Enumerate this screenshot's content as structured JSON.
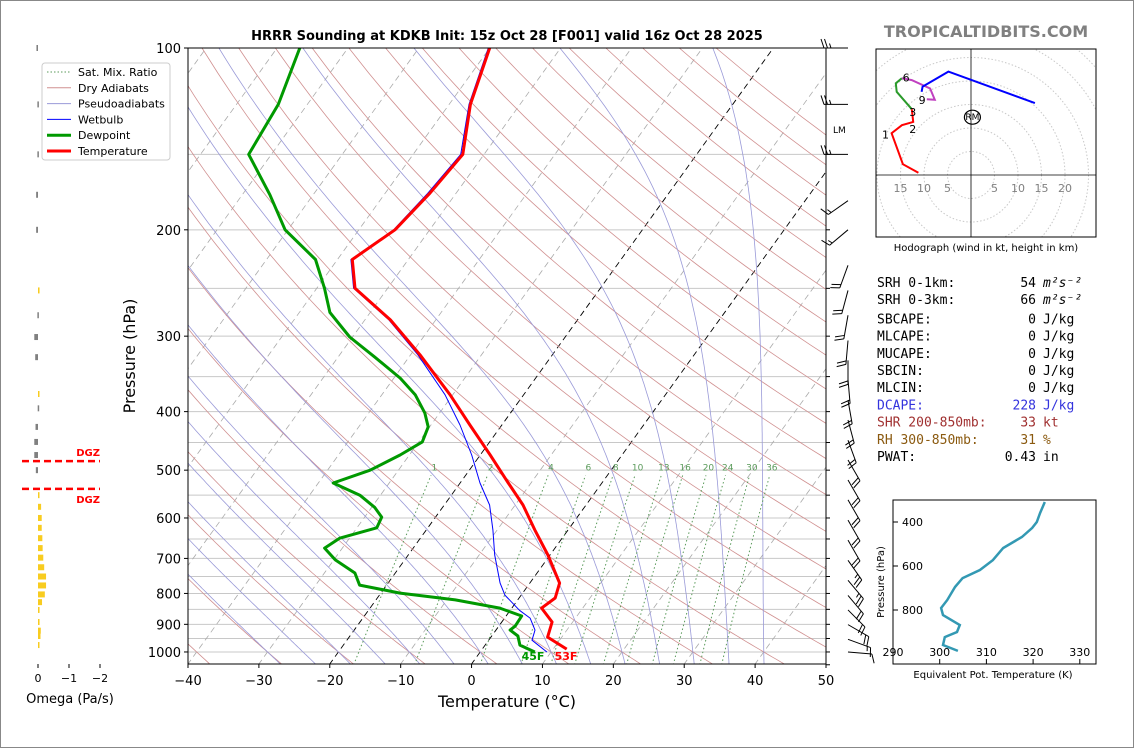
{
  "site": "TROPICALTIDBITS.COM",
  "chart_data": [
    {
      "type": "line",
      "name": "skewt",
      "title": "HRRR Sounding at KDKB Init: 15z Oct 28 [F001] valid 16z Oct 28 2025",
      "xlabel": "Temperature (°C)",
      "ylabel": "Pressure (hPa)",
      "xlim": [
        -40,
        50
      ],
      "ylim": [
        1050,
        100
      ],
      "xticks": [
        -40,
        -30,
        -20,
        -10,
        0,
        10,
        20,
        30,
        40,
        50
      ],
      "xtick_labels": [
        "−40",
        "−30",
        "−20",
        "−10",
        "0",
        "10",
        "20",
        "30",
        "40",
        "50"
      ],
      "yticks": [
        100,
        200,
        300,
        400,
        500,
        600,
        700,
        800,
        900,
        1000
      ],
      "ytick_labels": [
        "100",
        "200",
        "300",
        "400",
        "500",
        "600",
        "700",
        "800",
        "900",
        "1000"
      ],
      "legend": {
        "placement": "upper-left",
        "entries": [
          "Sat. Mix. Ratio",
          "Dry Adiabats",
          "Pseudoadiabats",
          "Wetbulb",
          "Dewpoint",
          "Temperature"
        ]
      },
      "colors": {
        "temperature": "#ff0000",
        "dewpoint": "#009900",
        "wetbulb": "#0000ff",
        "dry": "#d09090",
        "moist": "#9a9ad8",
        "mixing": "#5a9a5a"
      },
      "temperature": {
        "p": [
          100,
          124,
          150,
          174,
          200,
          224,
          250,
          282,
          322,
          375,
          421,
          472,
          525,
          571,
          628,
          691,
          769,
          814,
          846,
          892,
          945,
          989
        ],
        "t": [
          -60.0,
          -57.0,
          -53.0,
          -53.7,
          -54.9,
          -57.9,
          -54.6,
          -46.4,
          -38.7,
          -30.4,
          -24.5,
          -18.6,
          -13.2,
          -8.9,
          -4.7,
          -0.3,
          4.2,
          5.1,
          4.2,
          7.1,
          8.0,
          11.9
        ]
      },
      "dewpoint": {
        "p": [
          100,
          124,
          150,
          175,
          200,
          224,
          250,
          274,
          301,
          325,
          352,
          375,
          402,
          424,
          449,
          472,
          500,
          525,
          550,
          576,
          598,
          623,
          648,
          673,
          704,
          740,
          775,
          799,
          820,
          846,
          872,
          906,
          920,
          941,
          974,
          1000
        ],
        "t": [
          -86.8,
          -84.1,
          -83.2,
          -76.1,
          -70.4,
          -63.1,
          -58.9,
          -55.7,
          -50.4,
          -44.8,
          -39.1,
          -35.3,
          -32.1,
          -30.2,
          -29.5,
          -31.3,
          -34.0,
          -37.9,
          -32.9,
          -29.6,
          -27.6,
          -27.2,
          -31.4,
          -32.5,
          -29.8,
          -25.7,
          -23.8,
          -17.3,
          -8.8,
          -1.7,
          2.2,
          2.3,
          2.0,
          3.7,
          4.9,
          7.7
        ]
      },
      "wetbulb": {
        "p": [
          100,
          124,
          150,
          174,
          200,
          224,
          250,
          282,
          322,
          375,
          421,
          472,
          525,
          571,
          628,
          691,
          769,
          805,
          853,
          879,
          920,
          956,
          1000
        ],
        "t": [
          -60.2,
          -57.2,
          -53.3,
          -54.0,
          -55.1,
          -58.1,
          -54.8,
          -46.6,
          -39.0,
          -31.1,
          -25.9,
          -21.2,
          -17.2,
          -13.6,
          -10.6,
          -7.8,
          -4.2,
          -2.3,
          1.3,
          3.6,
          5.5,
          6.1,
          9.4
        ]
      },
      "surface_labels": {
        "dewpoint": "45F",
        "temperature": "53F"
      },
      "mixing_ratio_lines": [
        1,
        2,
        4,
        6,
        8,
        10,
        13,
        16,
        20,
        24,
        30,
        36
      ],
      "mixing_ratio_labels": [
        "1",
        "2",
        "4",
        "6",
        "8",
        "10",
        "13",
        "16",
        "20",
        "24",
        "30",
        "36"
      ],
      "dgz": {
        "label": "DGZ",
        "p_top": 483,
        "p_bottom": 537
      },
      "lm_label": "LM",
      "wind_barbs": [
        {
          "p": 100,
          "dir": 270,
          "kt": 25
        },
        {
          "p": 124,
          "dir": 270,
          "kt": 25
        },
        {
          "p": 150,
          "dir": 270,
          "kt": 25
        },
        {
          "p": 179,
          "dir": 235,
          "kt": 15
        },
        {
          "p": 200,
          "dir": 230,
          "kt": 15
        },
        {
          "p": 229,
          "dir": 200,
          "kt": 20
        },
        {
          "p": 252,
          "dir": 195,
          "kt": 20
        },
        {
          "p": 277,
          "dir": 190,
          "kt": 20
        },
        {
          "p": 305,
          "dir": 185,
          "kt": 20
        },
        {
          "p": 329,
          "dir": 180,
          "kt": 20
        },
        {
          "p": 354,
          "dir": 175,
          "kt": 20
        },
        {
          "p": 383,
          "dir": 170,
          "kt": 20
        },
        {
          "p": 413,
          "dir": 165,
          "kt": 20
        },
        {
          "p": 446,
          "dir": 160,
          "kt": 20
        },
        {
          "p": 481,
          "dir": 150,
          "kt": 20
        },
        {
          "p": 519,
          "dir": 150,
          "kt": 20
        },
        {
          "p": 560,
          "dir": 150,
          "kt": 20
        },
        {
          "p": 605,
          "dir": 150,
          "kt": 20
        },
        {
          "p": 653,
          "dir": 150,
          "kt": 20
        },
        {
          "p": 705,
          "dir": 145,
          "kt": 25
        },
        {
          "p": 761,
          "dir": 140,
          "kt": 25
        },
        {
          "p": 806,
          "dir": 140,
          "kt": 20
        },
        {
          "p": 852,
          "dir": 135,
          "kt": 20
        },
        {
          "p": 901,
          "dir": 120,
          "kt": 20
        },
        {
          "p": 953,
          "dir": 110,
          "kt": 15
        },
        {
          "p": 1000,
          "dir": 95,
          "kt": 10
        }
      ]
    },
    {
      "type": "bar",
      "name": "omega",
      "xlabel": "Omega (Pa/s)",
      "xlim": [
        0.3,
        -2.2
      ],
      "xticks": [
        0,
        -1,
        -2
      ],
      "xtick_labels": [
        "0",
        "−1",
        "−2"
      ],
      "colors": {
        "sinking": "#808080",
        "rising": "#f8cc20"
      },
      "p": [
        100,
        124,
        150,
        175,
        200,
        252,
        277,
        301,
        325,
        374,
        395,
        424,
        449,
        472,
        500,
        550,
        575,
        600,
        623,
        648,
        673,
        698,
        724,
        750,
        776,
        803,
        827,
        852,
        892,
        922,
        941,
        974
      ],
      "omega": [
        0.05,
        0.02,
        0.02,
        0.06,
        0.06,
        -0.05,
        0.02,
        0.12,
        0.09,
        -0.02,
        0.01,
        0.08,
        0.12,
        0.12,
        0.07,
        -0.03,
        -0.1,
        -0.12,
        -0.12,
        -0.14,
        -0.15,
        -0.17,
        -0.2,
        -0.26,
        -0.26,
        -0.22,
        -0.13,
        -0.05,
        -0.05,
        -0.09,
        -0.08,
        -0.03
      ]
    },
    {
      "type": "line",
      "name": "hodograph",
      "caption": "Hodograph (wind in kt, height in km)",
      "ring_step_kt": 5,
      "tick_labels": [
        {
          "u": -15,
          "text": "15"
        },
        {
          "u": -10,
          "text": "10"
        },
        {
          "u": -5,
          "text": "5"
        },
        {
          "u": 5,
          "text": "5"
        },
        {
          "u": 10,
          "text": "10"
        },
        {
          "u": 15,
          "text": "15"
        },
        {
          "u": 20,
          "text": "20"
        }
      ],
      "segments": [
        {
          "name": "0-3km",
          "color": "#ff0000",
          "u": [
            -11.2,
            -14.5,
            -16.9,
            -14.7,
            -12.3,
            -12.6
          ],
          "v": [
            0.5,
            2.3,
            8.9,
            10.6,
            11.3,
            14.0
          ]
        },
        {
          "name": "3-6km",
          "color": "#2a9a2a",
          "u": [
            -12.6,
            -15.8,
            -16.0,
            -14.7
          ],
          "v": [
            14.0,
            17.7,
            19.5,
            20.6
          ]
        },
        {
          "name": "6-9km",
          "color": "#c040c0",
          "u": [
            -14.7,
            -12.6,
            -8.7,
            -7.7,
            -9.4
          ],
          "v": [
            20.6,
            20.2,
            18.4,
            16.0,
            16.1
          ]
        },
        {
          "name": "9km+",
          "color": "#0000ff",
          "u": [
            -10.5,
            -10.3,
            -4.8,
            13.6
          ],
          "v": [
            17.7,
            18.8,
            22.0,
            15.3
          ]
        }
      ],
      "height_labels": [
        {
          "text": "1",
          "u": -18.2,
          "v": 8.6
        },
        {
          "text": "2",
          "u": -12.4,
          "v": 10.8
        },
        {
          "text": "3",
          "u": -12.4,
          "v": 12.6
        },
        {
          "text": "6",
          "u": -13.8,
          "v": 20.7
        },
        {
          "text": "9",
          "u": -10.4,
          "v": 16.0
        }
      ],
      "storm_motion": {
        "label": "RM",
        "u": 0.3,
        "v": 12.3
      }
    },
    {
      "type": "line",
      "name": "theta_e",
      "xlabel": "Equivalent Pot. Temperature (K)",
      "ylabel": "Pressure (hPa)",
      "xlim": [
        290,
        333.5
      ],
      "ylim": [
        1055,
        300
      ],
      "xticks": [
        290,
        300,
        310,
        320,
        330
      ],
      "xtick_labels": [
        "290",
        "300",
        "310",
        "320",
        "330"
      ],
      "yticks": [
        400,
        600,
        800
      ],
      "ytick_labels": [
        "400",
        "600",
        "800"
      ],
      "color": "#3399b3",
      "p": [
        309,
        359,
        400,
        427,
        468,
        518,
        573,
        618,
        655,
        695,
        755,
        791,
        823,
        868,
        900,
        923,
        959,
        986
      ],
      "theta_e": [
        322.5,
        321.5,
        320.8,
        319.8,
        317.6,
        313.6,
        311.4,
        308.6,
        304.9,
        303.3,
        301.6,
        300.3,
        300.7,
        304.3,
        303.7,
        301.1,
        300.7,
        303.9
      ]
    }
  ],
  "stats": [
    {
      "label": "SRH 0-1km:",
      "value": "54",
      "unit": "m²s⁻²",
      "color": "#000000"
    },
    {
      "label": "SRH 0-3km:",
      "value": "66",
      "unit": "m²s⁻²",
      "color": "#000000"
    },
    {
      "label": "SBCAPE:",
      "value": "0",
      "unit": "J/kg",
      "color": "#000000"
    },
    {
      "label": "MLCAPE:",
      "value": "0",
      "unit": "J/kg",
      "color": "#000000"
    },
    {
      "label": "MUCAPE:",
      "value": "0",
      "unit": "J/kg",
      "color": "#000000"
    },
    {
      "label": "SBCIN:",
      "value": "0",
      "unit": "J/kg",
      "color": "#000000"
    },
    {
      "label": "MLCIN:",
      "value": "0",
      "unit": "J/kg",
      "color": "#000000"
    },
    {
      "label": "DCAPE:",
      "value": "228",
      "unit": "J/kg",
      "color": "#3333dd"
    },
    {
      "label": "SHR 200-850mb:",
      "value": "33",
      "unit": "kt",
      "color": "#a03030"
    },
    {
      "label": "RH 300-850mb:",
      "value": "31",
      "unit": "%",
      "color": "#8b5a10"
    },
    {
      "label": "PWAT:",
      "value": "0.43",
      "unit": "in",
      "color": "#000000"
    }
  ]
}
